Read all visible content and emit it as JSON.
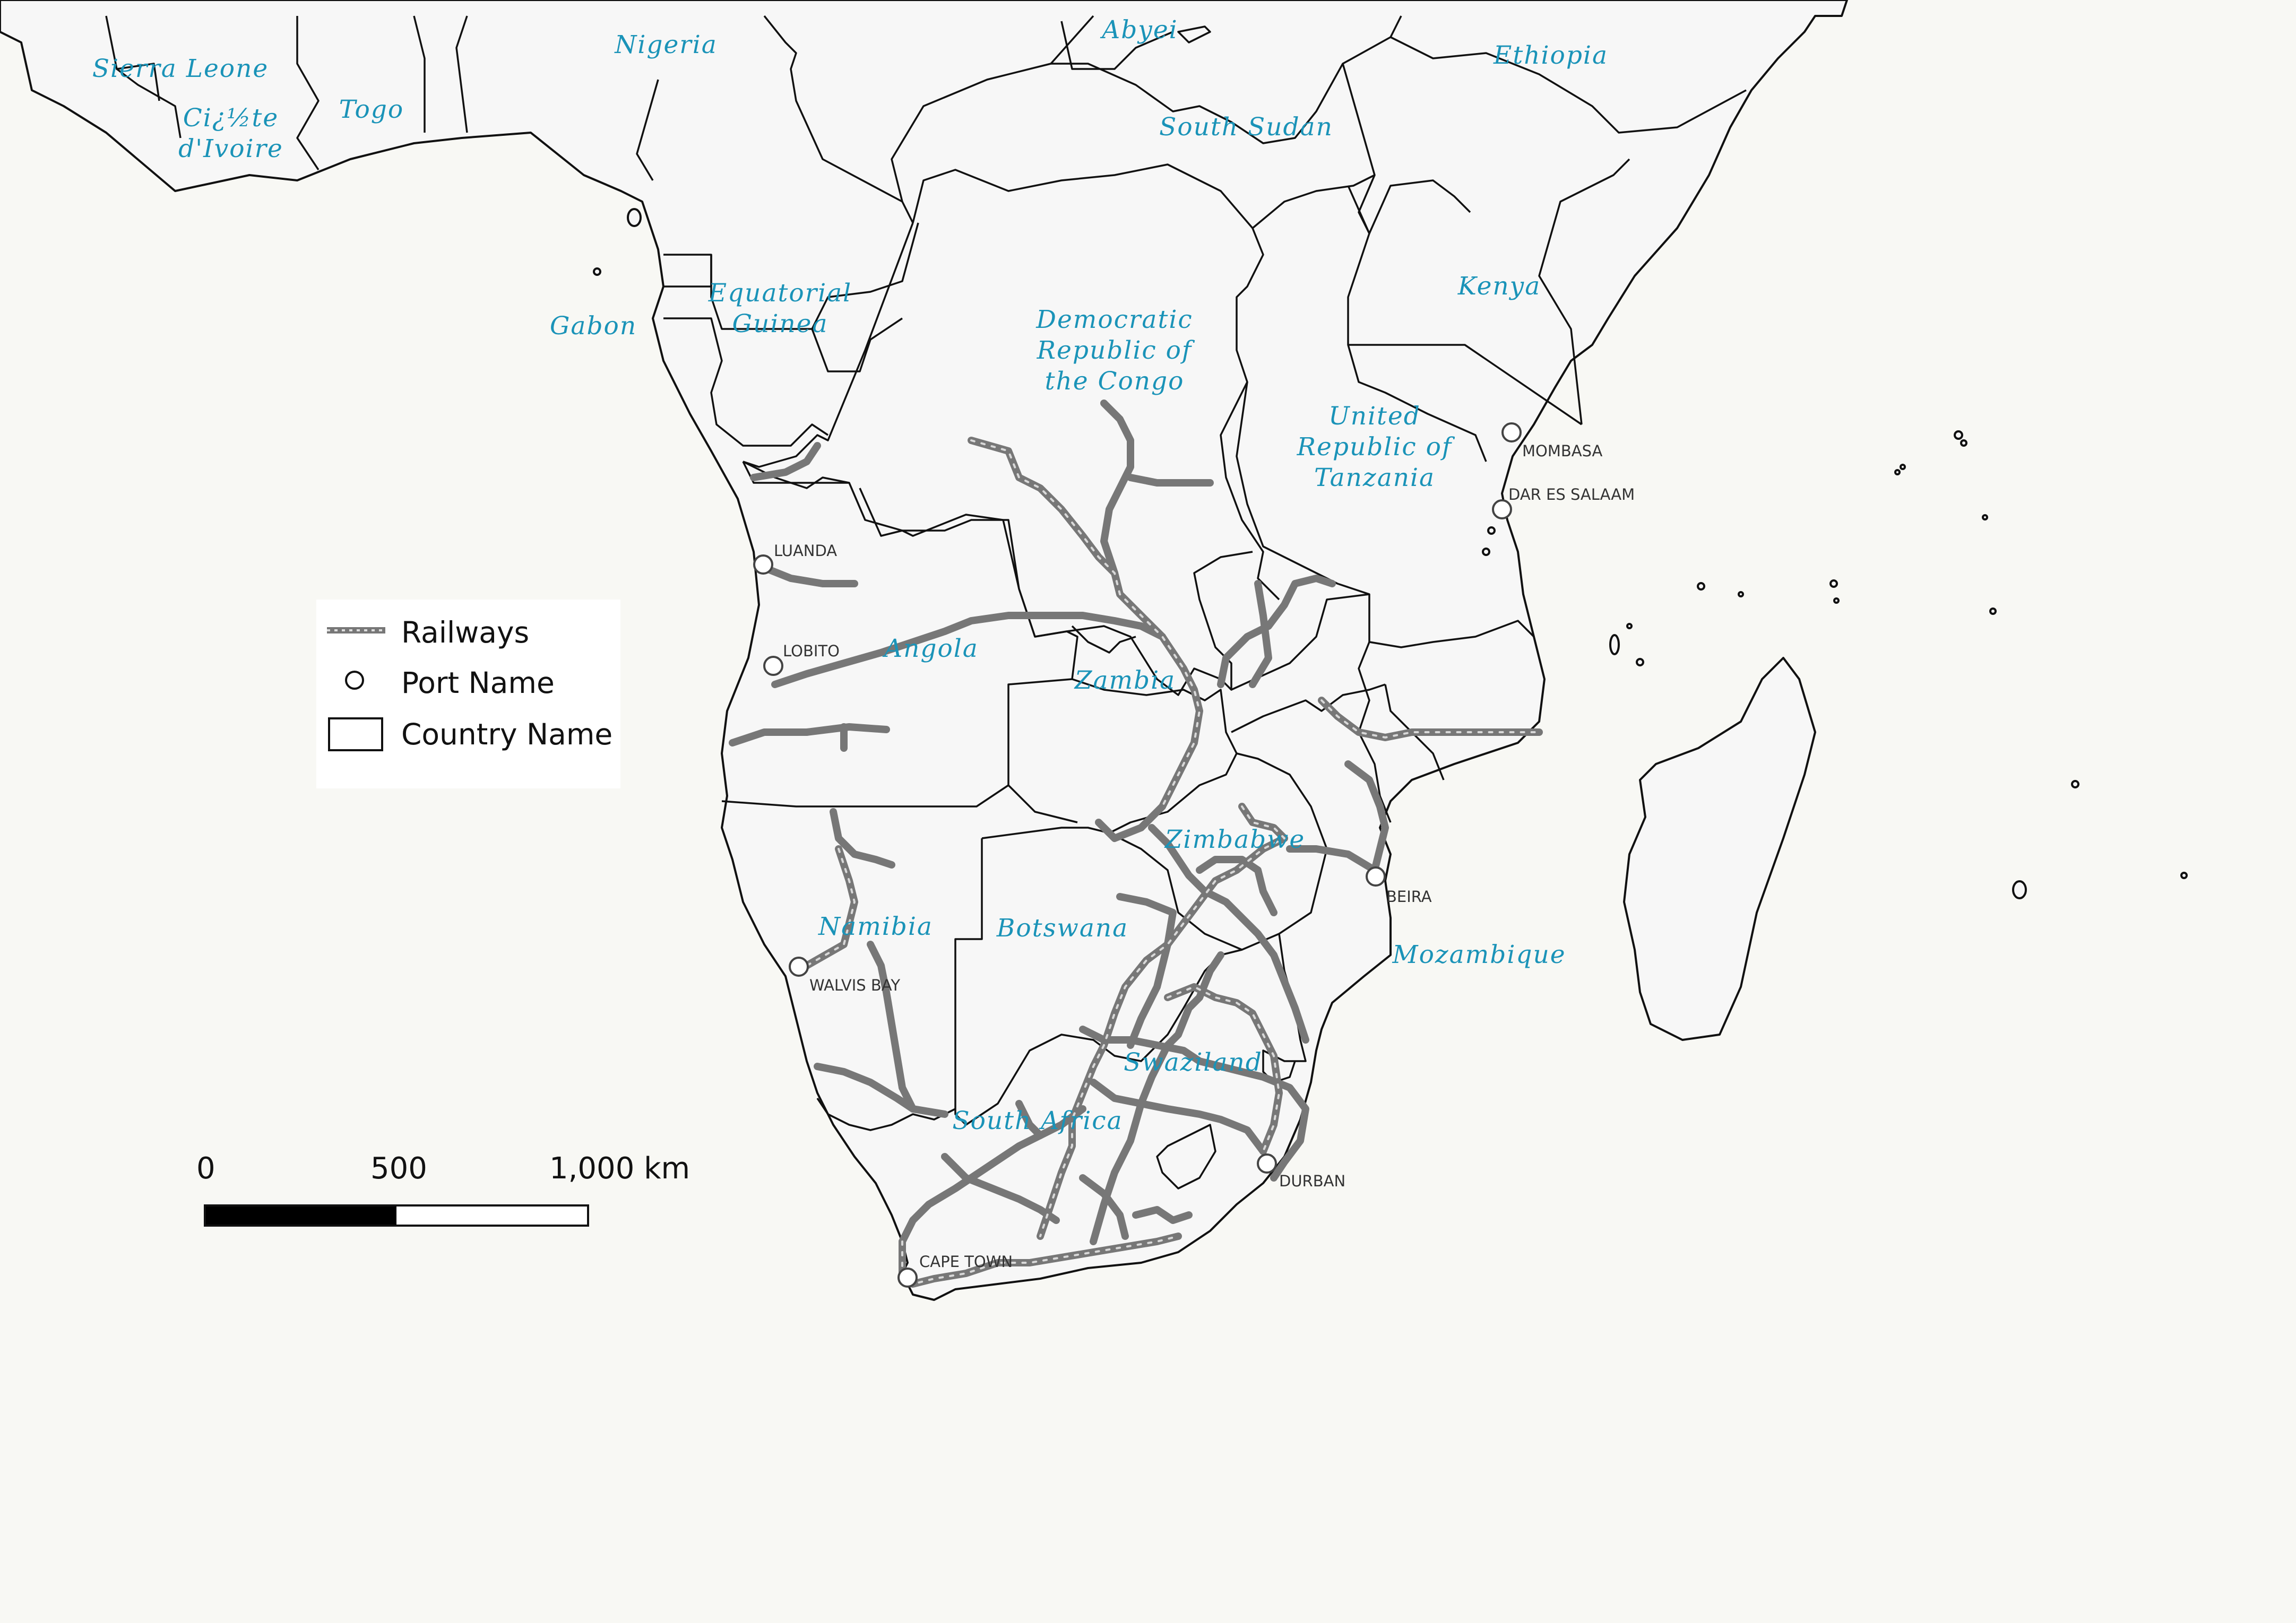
{
  "map": {
    "countries": [
      {
        "id": "sierra-leone",
        "name": "Sierra Leone"
      },
      {
        "id": "cote-divoire",
        "name": "Ci¿½te d'Ivoire"
      },
      {
        "id": "togo",
        "name": "Togo"
      },
      {
        "id": "nigeria",
        "name": "Nigeria"
      },
      {
        "id": "abyei",
        "name": "Abyei"
      },
      {
        "id": "ethiopia",
        "name": "Ethiopia"
      },
      {
        "id": "south-sudan",
        "name": "South Sudan"
      },
      {
        "id": "equatorial-guinea",
        "name": "Equatorial Guinea"
      },
      {
        "id": "gabon",
        "name": "Gabon"
      },
      {
        "id": "drc",
        "name": "Democratic Republic of the Congo"
      },
      {
        "id": "kenya",
        "name": "Kenya"
      },
      {
        "id": "tanzania",
        "name": "United Republic of Tanzania"
      },
      {
        "id": "angola",
        "name": "Angola"
      },
      {
        "id": "zambia",
        "name": "Zambia"
      },
      {
        "id": "zimbabwe",
        "name": "Zimbabwe"
      },
      {
        "id": "namibia",
        "name": "Namibia"
      },
      {
        "id": "botswana",
        "name": "Botswana"
      },
      {
        "id": "mozambique",
        "name": "Mozambique"
      },
      {
        "id": "swaziland",
        "name": "Swaziland"
      },
      {
        "id": "south-africa",
        "name": "South Africa"
      }
    ],
    "ports": [
      {
        "id": "mombasa",
        "name": "MOMBASA"
      },
      {
        "id": "dar-es-salaam",
        "name": "DAR ES SALAAM"
      },
      {
        "id": "luanda",
        "name": "LUANDA"
      },
      {
        "id": "lobito",
        "name": "LOBITO"
      },
      {
        "id": "beira",
        "name": "BEIRA"
      },
      {
        "id": "walvis-bay",
        "name": "WALVIS BAY"
      },
      {
        "id": "durban",
        "name": "DURBAN"
      },
      {
        "id": "cape-town",
        "name": "CAPE TOWN"
      }
    ],
    "colors": {
      "label": "#1a93b8",
      "railway": "#777777",
      "land": "#f7f7f7",
      "background": "#f8f8f4"
    }
  },
  "legend": {
    "items": [
      {
        "label": "Railways",
        "symbol": "railway-line-icon"
      },
      {
        "label": "Port Name",
        "symbol": "port-circle-icon"
      },
      {
        "label": "Country Name",
        "symbol": "country-box-icon"
      }
    ]
  },
  "scale_bar": {
    "labels": [
      "0",
      "500",
      "1,000 km"
    ]
  }
}
